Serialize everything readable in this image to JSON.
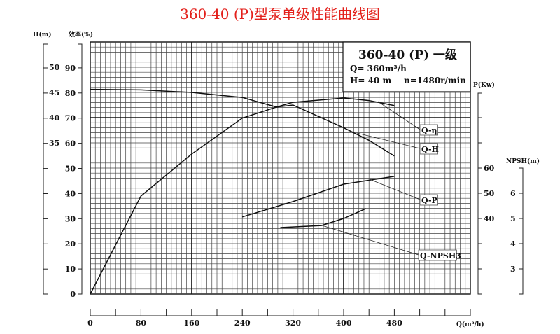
{
  "title": "360-40 (P)型泵单级性能曲线图",
  "info_box": {
    "model": "360-40 (P) 一级",
    "flow": "Q= 360m³/h",
    "head": "H= 40 m",
    "speed": "n=1480r/min"
  },
  "chart_data": {
    "type": "line",
    "title": "360-40 (P)型泵单级性能曲线图",
    "xlabel": "Q(m³/h)",
    "xlim": [
      0,
      600
    ],
    "x_ticks": [
      "0",
      "80",
      "160",
      "240",
      "320",
      "400",
      "480"
    ],
    "grid": true,
    "axes": {
      "head": {
        "label": "H(m)",
        "ticks": [
          "50",
          "45",
          "40",
          "35"
        ],
        "tick_values": [
          50,
          45,
          40,
          35
        ]
      },
      "efficiency": {
        "label": "效率(%)",
        "ticks": [
          "90",
          "80",
          "70",
          "60",
          "50",
          "40",
          "30",
          "20",
          "10",
          "0"
        ],
        "ylim": [
          0,
          100
        ]
      },
      "power": {
        "label": "P(Kw)",
        "ticks": [
          "60",
          "50",
          "40"
        ],
        "tick_values": [
          60,
          50,
          40
        ]
      },
      "npsh": {
        "label": "NPSH(m)",
        "ticks": [
          "6",
          "5",
          "4",
          "3"
        ],
        "tick_values": [
          6,
          5,
          4,
          3
        ]
      }
    },
    "series": [
      {
        "name": "Q-H",
        "axis": "head",
        "x": [
          0,
          80,
          160,
          240,
          294,
          320,
          400,
          440,
          480
        ],
        "y": [
          45.6,
          45.5,
          45.0,
          44.0,
          42.1,
          42.5,
          38.0,
          35.5,
          32.4
        ]
      },
      {
        "name": "Q-η",
        "axis": "efficiency",
        "x": [
          0,
          45,
          80,
          160,
          240,
          294,
          320,
          400,
          440,
          480
        ],
        "y": [
          0,
          22,
          39,
          55.7,
          70,
          74.4,
          76.3,
          78,
          77,
          75
        ]
      },
      {
        "name": "Q-P",
        "axis": "power",
        "x": [
          240,
          320,
          400,
          480
        ],
        "y": [
          40.6,
          46.7,
          53.6,
          56.7
        ]
      },
      {
        "name": "Q-NPSH3",
        "axis": "npsh",
        "x": [
          300,
          365,
          400,
          435
        ],
        "y": [
          4.64,
          4.72,
          5.0,
          5.39
        ]
      }
    ],
    "curve_labels": [
      "Q-η",
      "Q-H",
      "Q-P",
      "Q-NPSH3"
    ]
  },
  "colors": {
    "title": "#e3201b",
    "ink": "#111111",
    "grid": "#333333"
  }
}
